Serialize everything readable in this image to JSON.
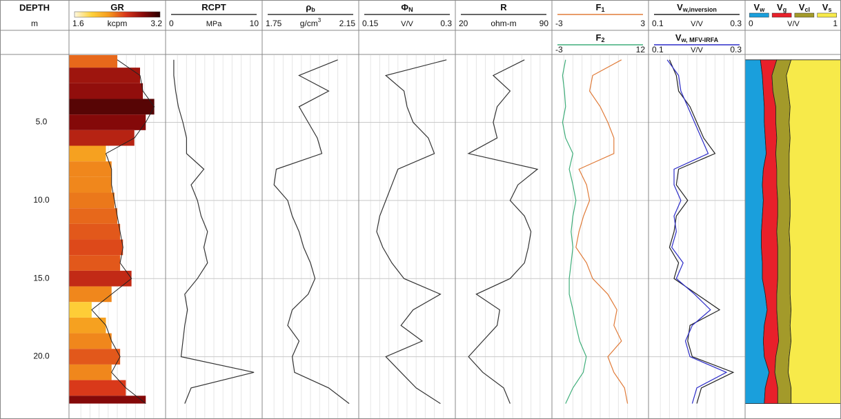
{
  "chart_data": {
    "type": "welllog",
    "depth_title": "DEPTH",
    "depth_unit": "m",
    "ylim": [
      0.7,
      23.9
    ],
    "yticks": [
      {
        "value": 5,
        "label": "5.0"
      },
      {
        "value": 10,
        "label": "10.0"
      },
      {
        "value": 15,
        "label": "15.0"
      },
      {
        "value": 20,
        "label": "20.0"
      }
    ],
    "grid": true,
    "depth": [
      1,
      2,
      3,
      4,
      5,
      6,
      7,
      8,
      9,
      10,
      11,
      12,
      13,
      14,
      15,
      16,
      17,
      18,
      19,
      20,
      21,
      22,
      23
    ],
    "tracks": [
      {
        "type": "fill",
        "series": [
          {
            "name": "GR",
            "unit": "kcpm",
            "xlim": [
              1.6,
              3.2
            ],
            "colormap": [
              "#fff8e0",
              "#ffd23a",
              "#f59a1c",
              "#d8361a",
              "#8a0a0a",
              "#2a0000"
            ],
            "values": [
              2.4,
              2.8,
              2.85,
              3.05,
              2.9,
              2.7,
              2.2,
              2.3,
              2.3,
              2.35,
              2.4,
              2.45,
              2.5,
              2.45,
              2.65,
              2.3,
              1.95,
              2.2,
              2.3,
              2.45,
              2.3,
              2.55,
              2.9
            ]
          }
        ]
      },
      {
        "type": "line",
        "series": [
          {
            "name": "RCPT",
            "unit": "MPa",
            "xlim": [
              0,
              10
            ],
            "color": "#333333",
            "values": [
              0.6,
              0.6,
              0.8,
              1.1,
              1.6,
              2.0,
              2.0,
              3.9,
              2.5,
              3.2,
              3.6,
              4.3,
              3.9,
              4.3,
              3.2,
              1.8,
              2.1,
              1.8,
              1.6,
              1.4,
              9.4,
              2.5,
              1.8
            ]
          }
        ]
      },
      {
        "type": "line",
        "series": [
          {
            "name": "ρ",
            "name_sub": "b",
            "unit": "g/cm",
            "unit_sup": "3",
            "xlim": [
              1.75,
              2.15
            ],
            "color": "#333333",
            "values": [
              2.07,
              1.9,
              2.03,
              1.9,
              1.94,
              1.98,
              2.0,
              1.8,
              1.79,
              1.85,
              1.87,
              1.9,
              1.92,
              1.95,
              1.97,
              1.94,
              1.87,
              1.85,
              1.9,
              1.87,
              1.88,
              2.03,
              2.12
            ]
          }
        ]
      },
      {
        "type": "line",
        "series": [
          {
            "name": "Φ",
            "name_sub": "N",
            "unit": "V/V",
            "xlim": [
              0.15,
              0.3
            ],
            "color": "#333333",
            "values": [
              0.29,
              0.19,
              0.22,
              0.225,
              0.235,
              0.26,
              0.27,
              0.21,
              0.2,
              0.19,
              0.18,
              0.175,
              0.185,
              0.2,
              0.22,
              0.28,
              0.235,
              0.215,
              0.25,
              0.19,
              0.215,
              0.24,
              0.28
            ]
          }
        ]
      },
      {
        "type": "line",
        "series": [
          {
            "name": "R",
            "unit": "ohm-m",
            "xlim": [
              20,
              90
            ],
            "color": "#333333",
            "values": [
              71,
              47,
              60,
              50,
              47,
              50,
              28,
              81,
              66,
              60,
              71,
              76,
              74,
              71,
              60,
              34,
              52,
              50,
              39,
              28,
              39,
              55,
              60
            ]
          }
        ]
      },
      {
        "type": "line",
        "series": [
          {
            "name": "F",
            "name_sub": "1",
            "xlim": [
              -3,
              3
            ],
            "color": "#e07b39",
            "values": [
              1.4,
              -0.5,
              -0.7,
              0,
              0.5,
              0.9,
              0.9,
              -1.4,
              -0.9,
              -0.7,
              -1.1,
              -1.4,
              -1.6,
              -0.9,
              -0.5,
              0.5,
              1.1,
              0.9,
              1.4,
              0.5,
              0.9,
              1.6,
              1.8
            ]
          },
          {
            "name": "F",
            "name_sub": "2",
            "xlim": [
              -3,
              12
            ],
            "color": "#3fae7a",
            "values": [
              -1.2,
              -1.7,
              -1.4,
              -1.2,
              -1.7,
              -1.2,
              0,
              -0.6,
              0,
              0.5,
              0,
              -0.3,
              0,
              -0.3,
              -0.6,
              -0.6,
              0,
              0.5,
              1.1,
              2.2,
              1.7,
              0,
              -1.2
            ]
          }
        ]
      },
      {
        "type": "line",
        "series": [
          {
            "name": "V",
            "name_sub": "w,inversion",
            "unit": "V/V",
            "xlim": [
              0.1,
              0.3
            ],
            "color": "#222222",
            "values": [
              0.14,
              0.155,
              0.16,
              0.185,
              0.2,
              0.215,
              0.24,
              0.16,
              0.155,
              0.18,
              0.155,
              0.15,
              0.14,
              0.16,
              0.15,
              0.2,
              0.25,
              0.185,
              0.18,
              0.19,
              0.28,
              0.21,
              0.2
            ]
          },
          {
            "name": "V",
            "name_sub": "w, MFV-IRFA",
            "unit": "V/V",
            "xlim": [
              0.1,
              0.3
            ],
            "color": "#2b2bc8",
            "values": [
              0.135,
              0.16,
              0.165,
              0.18,
              0.195,
              0.21,
              0.225,
              0.15,
              0.15,
              0.165,
              0.15,
              0.155,
              0.145,
              0.17,
              0.155,
              0.195,
              0.23,
              0.19,
              0.175,
              0.185,
              0.265,
              0.2,
              0.19
            ]
          }
        ]
      },
      {
        "type": "stacked",
        "unit": "V/V",
        "xlim": [
          0,
          1
        ],
        "series": [
          {
            "name": "V",
            "name_sub": "w",
            "color": "#1a9fdc",
            "values": [
              0.16,
              0.18,
              0.19,
              0.2,
              0.2,
              0.21,
              0.22,
              0.19,
              0.18,
              0.19,
              0.18,
              0.17,
              0.17,
              0.18,
              0.18,
              0.21,
              0.23,
              0.2,
              0.19,
              0.2,
              0.25,
              0.21,
              0.2
            ]
          },
          {
            "name": "V",
            "name_sub": "g",
            "color": "#e8202a",
            "values": [
              0.17,
              0.1,
              0.1,
              0.12,
              0.12,
              0.12,
              0.1,
              0.14,
              0.15,
              0.15,
              0.16,
              0.16,
              0.17,
              0.16,
              0.16,
              0.12,
              0.1,
              0.14,
              0.16,
              0.12,
              0.06,
              0.13,
              0.14
            ]
          },
          {
            "name": "V",
            "name_sub": "cl",
            "color": "#a39a2a",
            "values": [
              0.15,
              0.15,
              0.16,
              0.15,
              0.14,
              0.14,
              0.14,
              0.13,
              0.13,
              0.13,
              0.13,
              0.13,
              0.13,
              0.13,
              0.13,
              0.14,
              0.15,
              0.13,
              0.13,
              0.14,
              0.14,
              0.14,
              0.14
            ]
          },
          {
            "name": "V",
            "name_sub": "s",
            "color": "#f7ea4a",
            "values": [
              0.52,
              0.57,
              0.55,
              0.53,
              0.54,
              0.53,
              0.54,
              0.54,
              0.54,
              0.53,
              0.53,
              0.54,
              0.53,
              0.53,
              0.53,
              0.53,
              0.52,
              0.53,
              0.52,
              0.54,
              0.55,
              0.52,
              0.52
            ]
          }
        ]
      }
    ]
  }
}
